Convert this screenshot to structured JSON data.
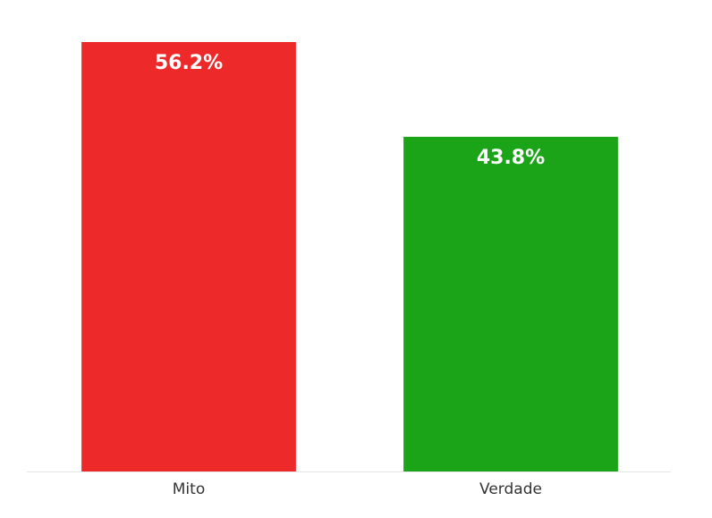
{
  "chart_data": {
    "type": "bar",
    "categories": [
      "Mito",
      "Verdade"
    ],
    "values": [
      56.2,
      43.8
    ],
    "value_labels": [
      "56.2%",
      "43.8%"
    ],
    "colors": [
      "#ee2929",
      "#1ca418"
    ]
  }
}
